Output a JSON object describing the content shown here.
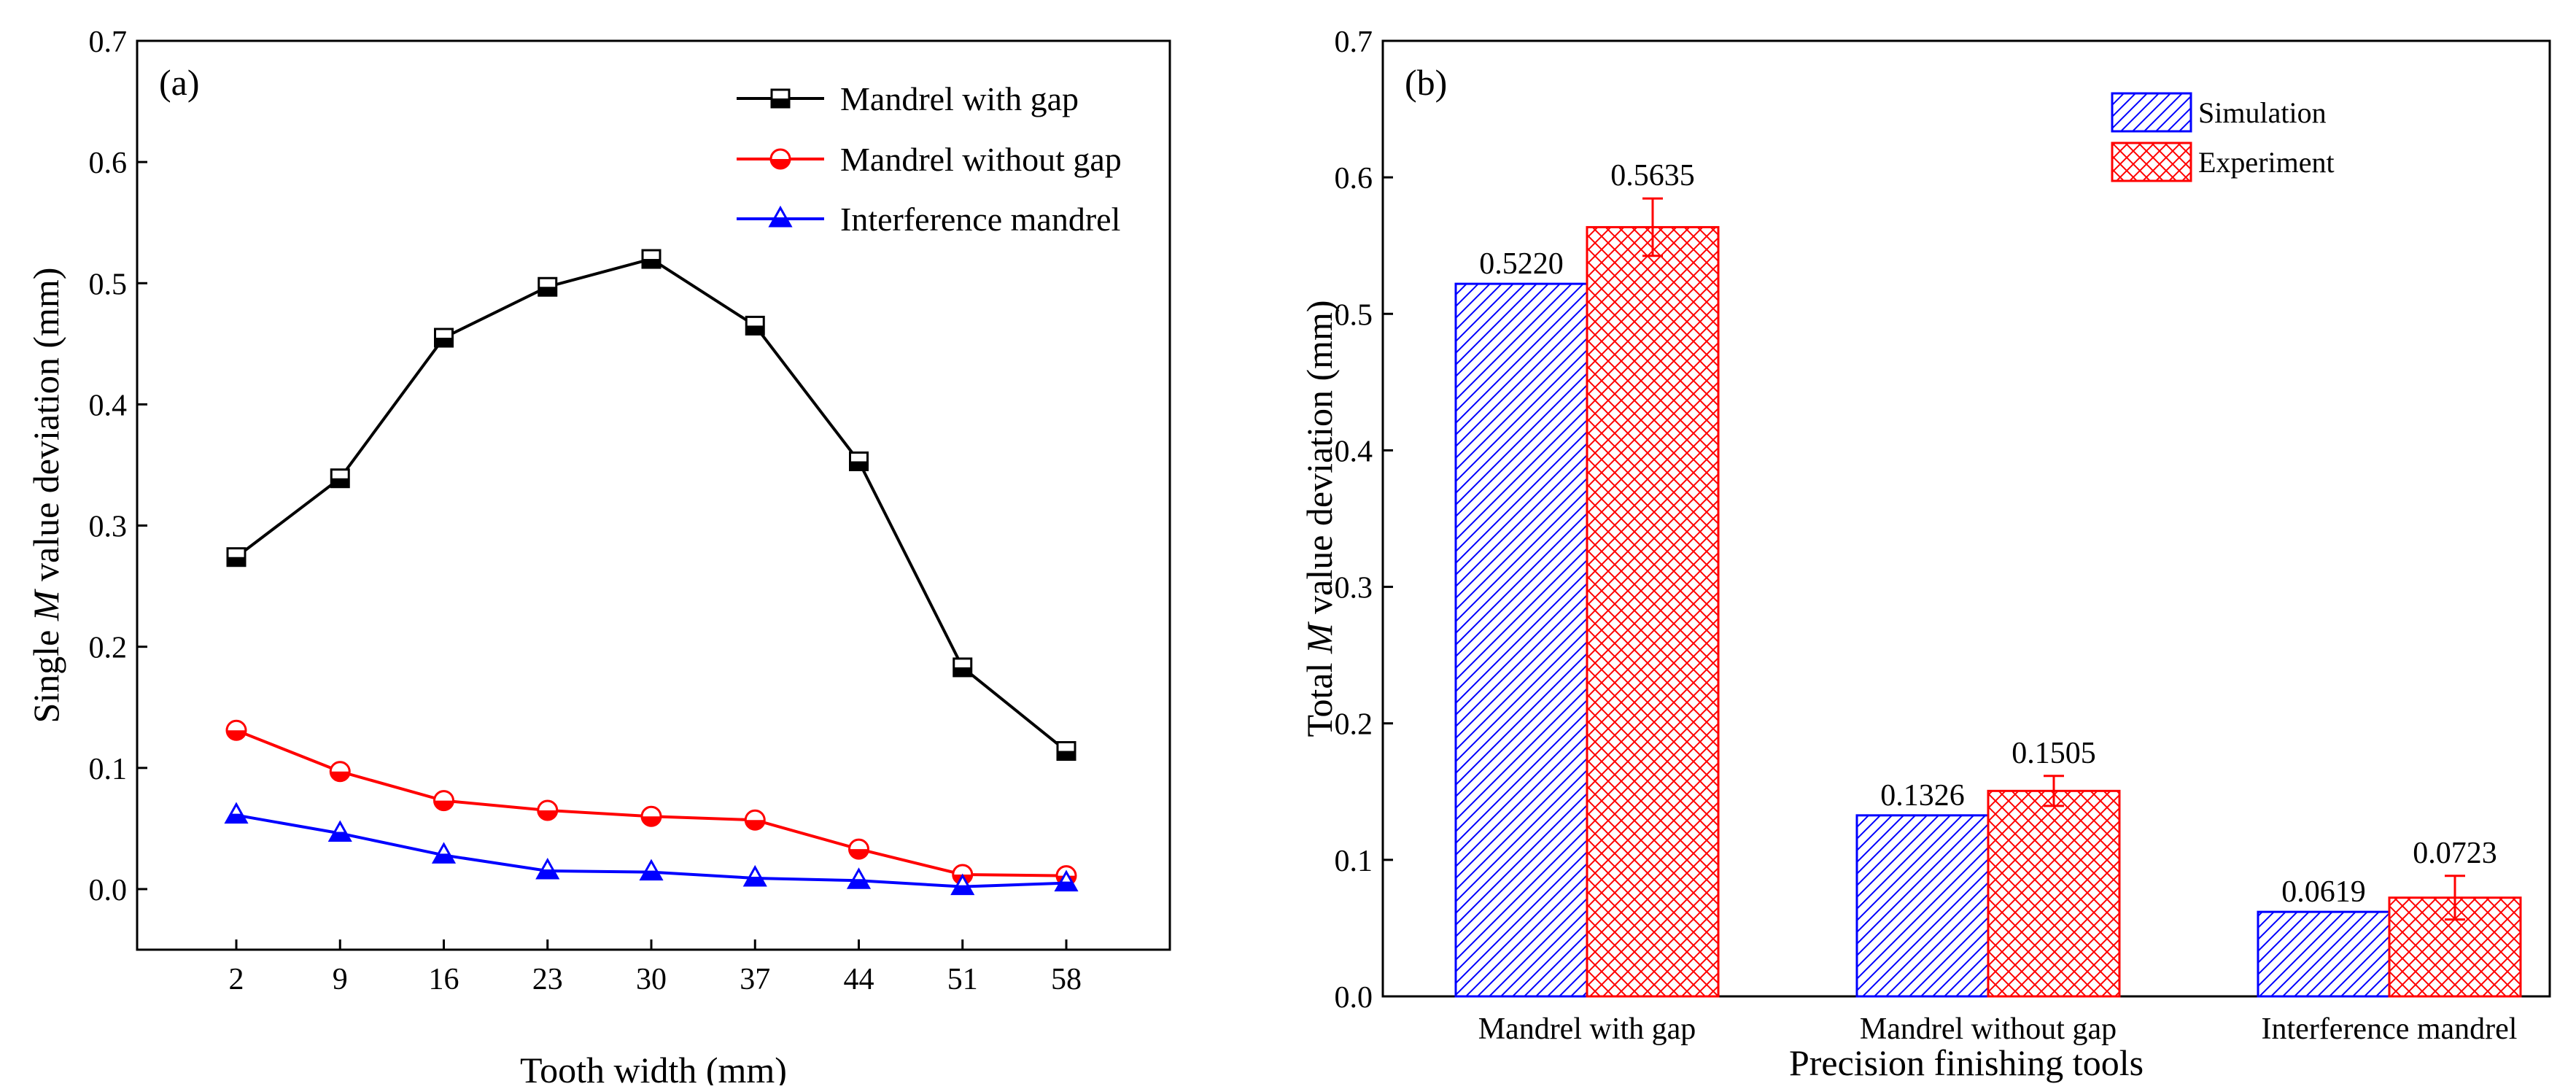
{
  "chart_data": [
    {
      "type": "line",
      "panel_label": "(a)",
      "xlabel": "Tooth width (mm)",
      "ylabel_parts": [
        "Single ",
        "M",
        " value deviation (mm)"
      ],
      "x": [
        2,
        9,
        16,
        23,
        30,
        37,
        44,
        51,
        58
      ],
      "x_tick_labels": [
        "2",
        "9",
        "16",
        "23",
        "30",
        "37",
        "44",
        "51",
        "58"
      ],
      "ylim": [
        -0.05,
        0.7
      ],
      "y_ticks": [
        0.0,
        0.1,
        0.2,
        0.3,
        0.4,
        0.5,
        0.6,
        0.7
      ],
      "y_tick_labels": [
        "0.0",
        "0.1",
        "0.2",
        "0.3",
        "0.4",
        "0.5",
        "0.6",
        "0.7"
      ],
      "legend_position": "top-right",
      "series": [
        {
          "name": "Mandrel with gap",
          "marker": "square",
          "color": "#000000",
          "values": [
            0.274,
            0.339,
            0.455,
            0.497,
            0.52,
            0.465,
            0.353,
            0.183,
            0.114
          ]
        },
        {
          "name": "Mandrel without gap",
          "marker": "circle",
          "color": "#ff0000",
          "values": [
            0.131,
            0.097,
            0.073,
            0.065,
            0.06,
            0.057,
            0.033,
            0.012,
            0.011
          ]
        },
        {
          "name": "Interference mandrel",
          "marker": "triangle",
          "color": "#0000ff",
          "values": [
            0.061,
            0.046,
            0.028,
            0.015,
            0.014,
            0.009,
            0.007,
            0.002,
            0.005
          ]
        }
      ]
    },
    {
      "type": "bar",
      "panel_label": "(b)",
      "xlabel": "Precision finishing tools",
      "ylabel_parts": [
        "Total ",
        "M",
        " value deviation (mm)"
      ],
      "categories": [
        "Mandrel with gap",
        "Mandrel without gap",
        "Interference mandrel"
      ],
      "ylim": [
        0.0,
        0.7
      ],
      "y_ticks": [
        0.0,
        0.1,
        0.2,
        0.3,
        0.4,
        0.5,
        0.6,
        0.7
      ],
      "y_tick_labels": [
        "0.0",
        "0.1",
        "0.2",
        "0.3",
        "0.4",
        "0.5",
        "0.6",
        "0.7"
      ],
      "legend_position": "top-right",
      "series": [
        {
          "name": "Simulation",
          "pattern": "diagonal-hatch",
          "color": "#0000ff",
          "values": [
            0.522,
            0.1326,
            0.0619
          ],
          "value_labels": [
            "0.5220",
            "0.1326",
            "0.0619"
          ]
        },
        {
          "name": "Experiment",
          "pattern": "cross-hatch",
          "color": "#ff0000",
          "values": [
            0.5635,
            0.1505,
            0.0723
          ],
          "value_labels": [
            "0.5635",
            "0.1505",
            "0.0723"
          ],
          "error": [
            0.021,
            0.011,
            0.016
          ]
        }
      ]
    }
  ]
}
